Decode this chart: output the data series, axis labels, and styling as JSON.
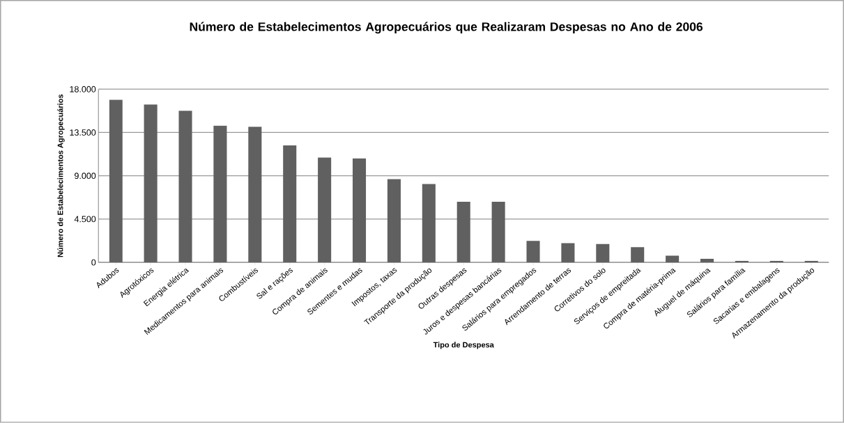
{
  "chart_data": {
    "type": "bar",
    "title": "Número de Estabelecimentos Agropecuários que Realizaram Despesas no Ano de 2006",
    "xlabel": "Tipo de Despesa",
    "ylabel": "Número de Estabelecimentos Agropecuários",
    "categories": [
      "Adubos",
      "Agrotóxicos",
      "Energia elétrica",
      "Medicamentos para animais",
      "Combustíveis",
      "Sal e rações",
      "Compra de animais",
      "Sementes e mudas",
      "Impostos, taxas",
      "Transporte da produção",
      "Outras despesas",
      "Juros e despesas bancárias",
      "Salários para empregados",
      "Arrendamento de terras",
      "Corretivos do solo",
      "Serviços de empreitada",
      "Compra de matéria-prima",
      "Aluguel de máquina",
      "Salários para família",
      "Sacarias e embalagens",
      "Armazenamento da produção"
    ],
    "values": [
      16900,
      16400,
      15750,
      14200,
      14100,
      12150,
      10900,
      10800,
      8650,
      8150,
      6300,
      6300,
      2230,
      2000,
      1900,
      1580,
      700,
      370,
      150,
      150,
      150
    ],
    "color": "#606060",
    "ylim": [
      0,
      18000
    ],
    "yticks": [
      0,
      {
        "value": 4500,
        "label": "4.500"
      },
      {
        "value": 9000,
        "label": "9.000"
      },
      {
        "value": 13500,
        "label": "13.500"
      },
      {
        "value": 18000,
        "label": "18.000"
      }
    ],
    "grid": "y"
  }
}
